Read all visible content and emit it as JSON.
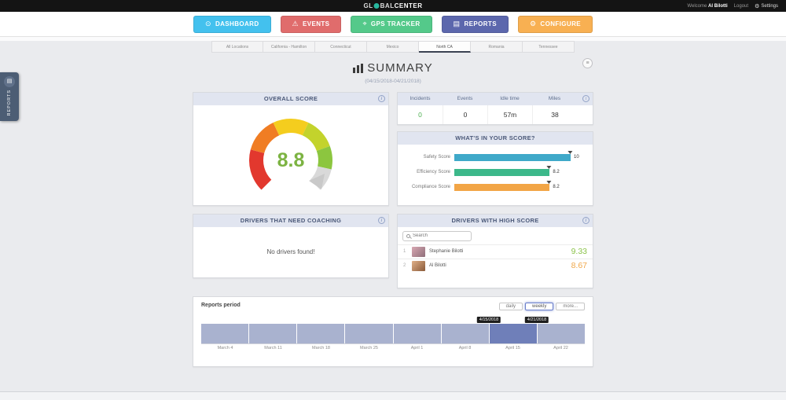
{
  "topbar": {
    "brand": {
      "part1": "GL",
      "part2": "BAL",
      "part3": "CENTER"
    },
    "welcome_label": "Welcome",
    "user_name": "Al Bilotti",
    "logout_label": "Logout",
    "settings_label": "Settings"
  },
  "nav": {
    "buttons": [
      {
        "label": "DASHBOARD",
        "color": "#43c1ee"
      },
      {
        "label": "EVENTS",
        "color": "#e06c6c"
      },
      {
        "label": "GPS TRACKER",
        "color": "#54c98a"
      },
      {
        "label": "REPORTS",
        "color": "#5c67ad"
      },
      {
        "label": "CONFIGURE",
        "color": "#f8b052"
      }
    ]
  },
  "location_tabs": {
    "items": [
      "All Locations",
      "California - Hamilton",
      "Connecticut",
      "Mexico",
      "North CA",
      "Romania",
      "Tennessee"
    ],
    "selected": "North CA"
  },
  "side_tab": {
    "label": "REPORTS"
  },
  "page": {
    "title": "SUMMARY",
    "subtitle": "(04/15/2018-04/21/2018)"
  },
  "overall_score": {
    "title": "OVERALL SCORE",
    "value": "8.8",
    "max": 10,
    "value_color": "#7cb342"
  },
  "stats": {
    "columns": [
      "Incidents",
      "Events",
      "Idle time",
      "Miles"
    ],
    "values": [
      {
        "text": "0",
        "color": "#4caf50"
      },
      {
        "text": "0",
        "color": "#333333"
      },
      {
        "text": "57m",
        "color": "#333333"
      },
      {
        "text": "38",
        "color": "#333333"
      }
    ]
  },
  "score_breakdown": {
    "title": "WHAT'S IN YOUR SCORE?",
    "bars": [
      {
        "label": "Safety Score",
        "value": "10",
        "pct": 100,
        "color": "#3fa9c9"
      },
      {
        "label": "Efficiency Score",
        "value": "8.2",
        "pct": 82,
        "color": "#3cb88a"
      },
      {
        "label": "Compliance Score",
        "value": "8.2",
        "pct": 82,
        "color": "#f2a546"
      }
    ]
  },
  "coaching": {
    "title": "DRIVERS THAT NEED COACHING",
    "empty_message": "No drivers found!"
  },
  "high_score": {
    "title": "DRIVERS WITH HIGH SCORE",
    "search_placeholder": "Search",
    "drivers": [
      {
        "rank": "1",
        "name": "Stephanie Bilotti",
        "score": "9.33",
        "score_color": "#8bc34a"
      },
      {
        "rank": "2",
        "name": "Al Bilotti",
        "score": "8.67",
        "score_color": "#f0a84b"
      }
    ]
  },
  "reports_period": {
    "title": "Reports period",
    "range_buttons": [
      {
        "label": "daily",
        "selected": false
      },
      {
        "label": "weekly",
        "selected": true
      },
      {
        "label": "more...",
        "selected": false
      }
    ],
    "axis_labels": [
      "March 4",
      "March 11",
      "March 18",
      "March 25",
      "April 1",
      "April 8",
      "April 15",
      "April 22"
    ],
    "selected_week_index": 6,
    "tooltip_start": "4/15/2018",
    "tooltip_end": "4/21/2018",
    "bar_color": "#a9b2cf",
    "selected_bar_color": "#6f7fb9"
  }
}
